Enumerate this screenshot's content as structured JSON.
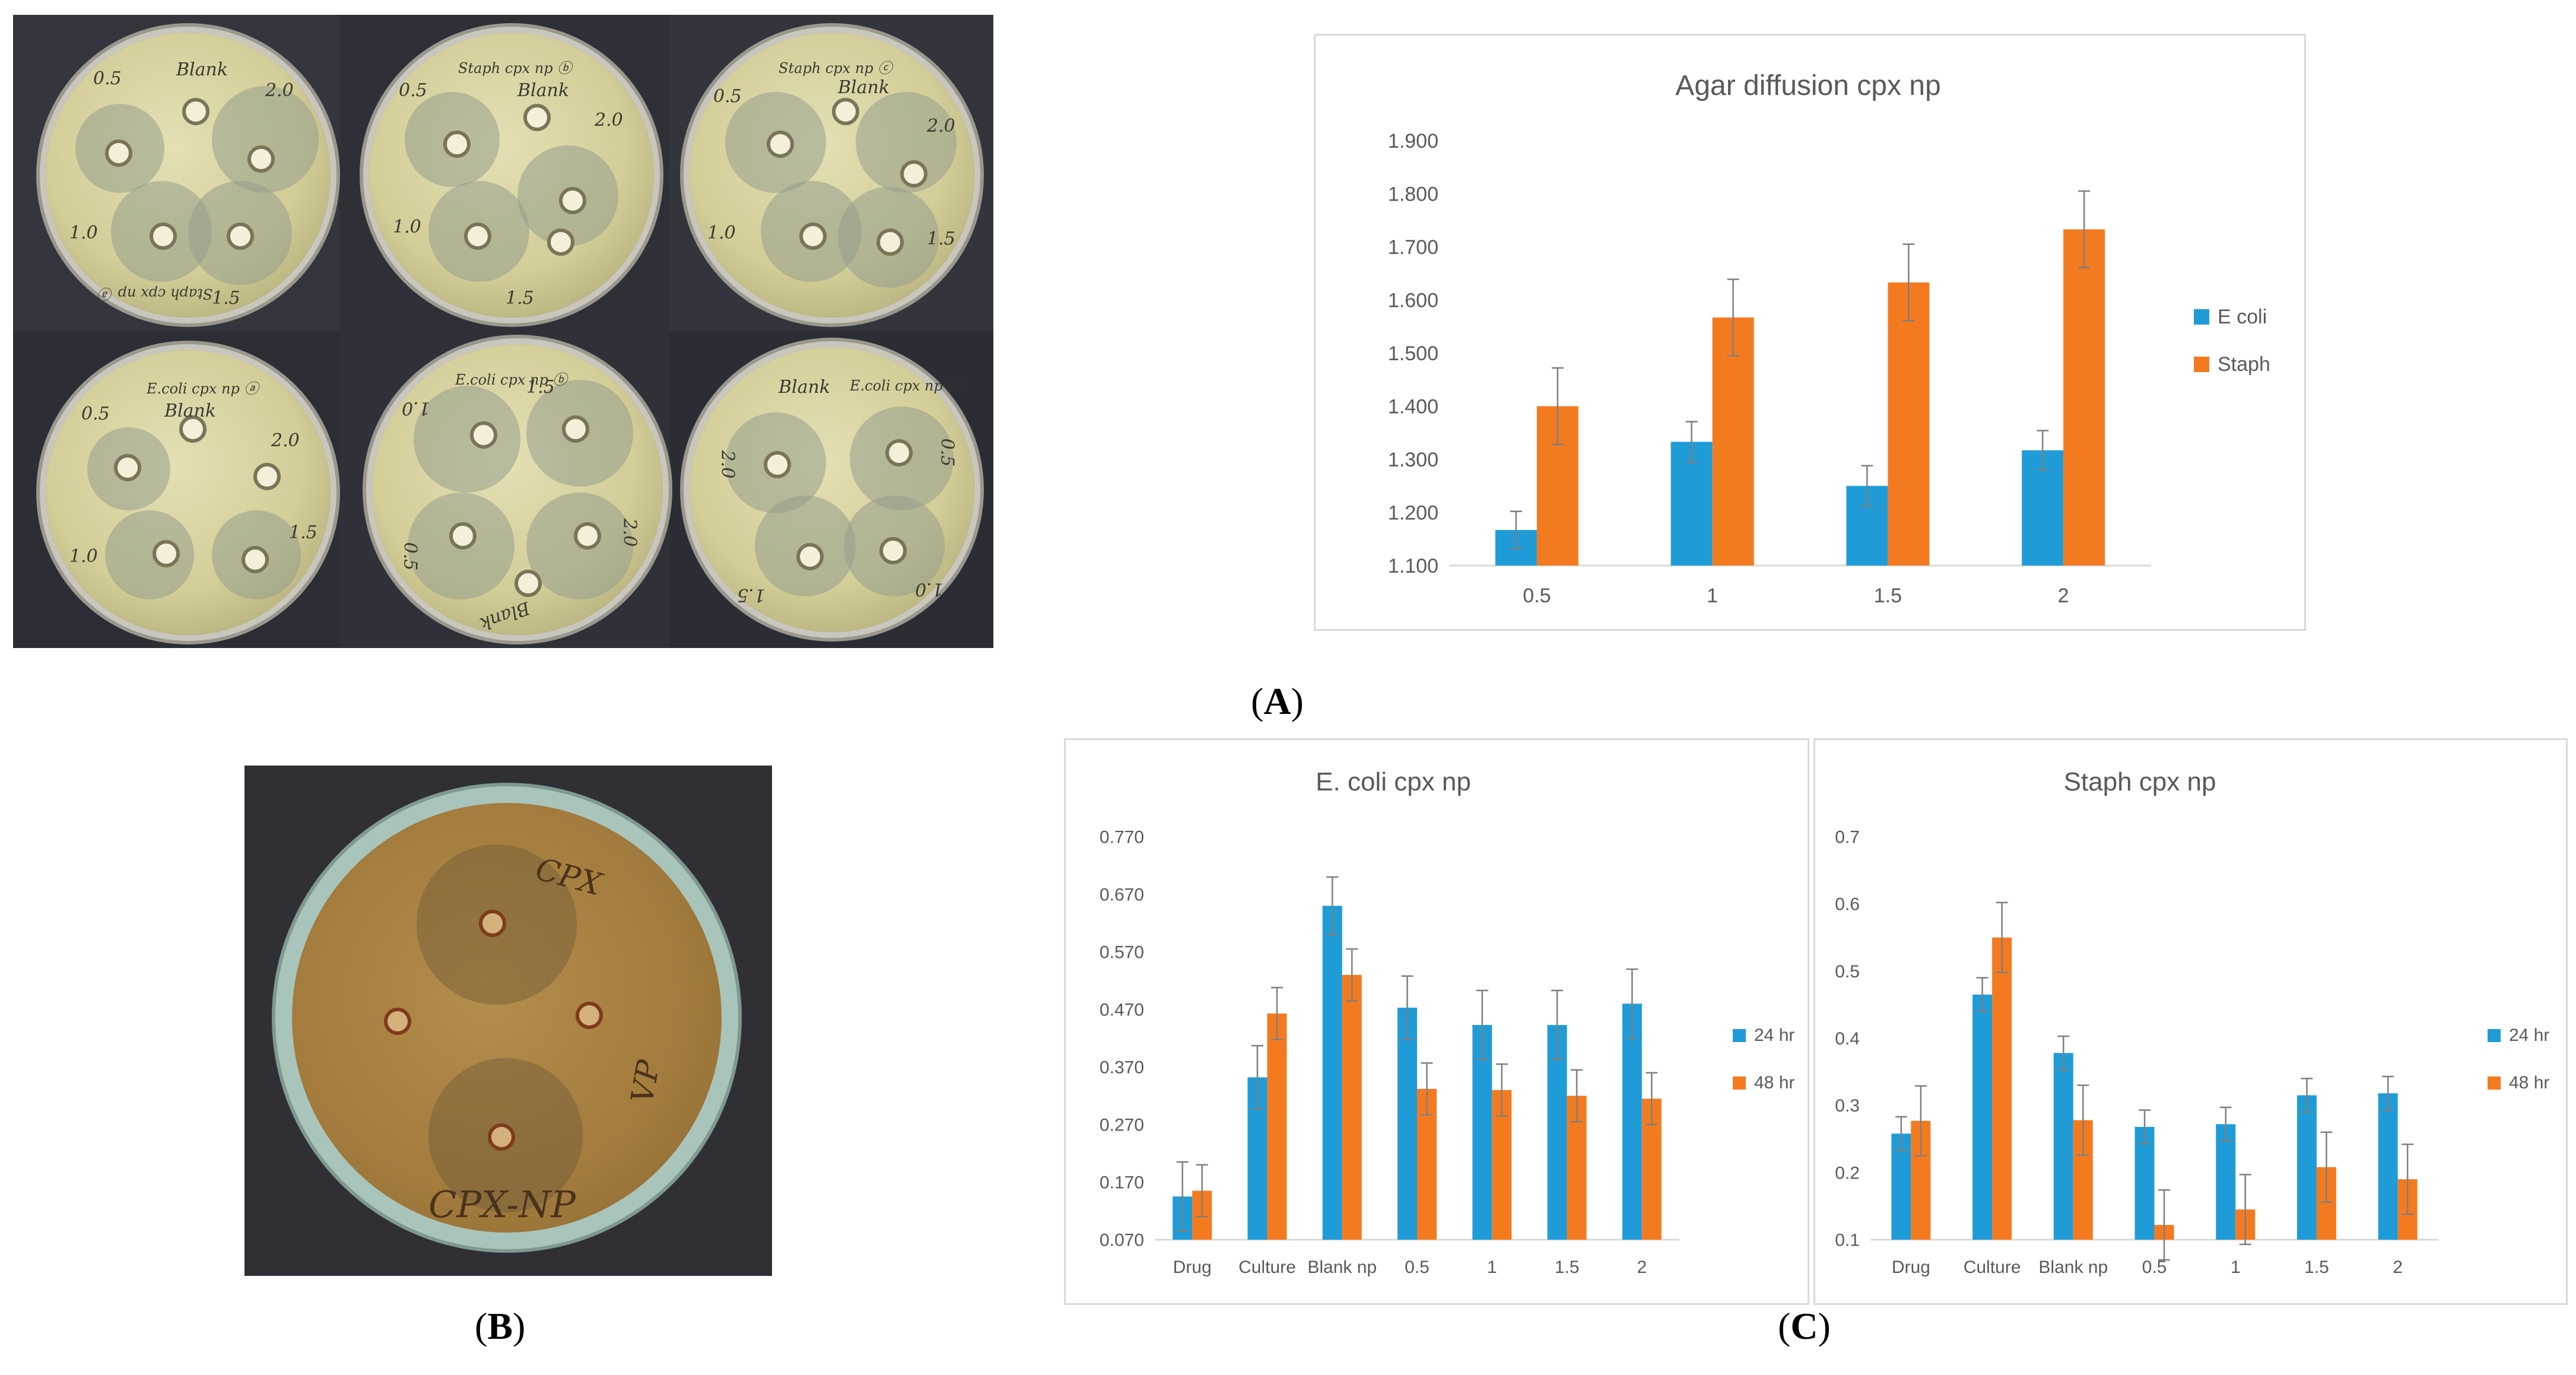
{
  "panel_labels": {
    "A": "A",
    "B": "B",
    "C": "C"
  },
  "photo_A": {
    "plates": [
      {
        "marks": [
          "0.5",
          "Blank",
          "2.0",
          "1.0",
          "1.5",
          "Staph cpx np ⓐ"
        ]
      },
      {
        "marks": [
          "0.5",
          "Staph cpx np ⓑ",
          "Blank",
          "2.0",
          "1.0",
          "1.5"
        ]
      },
      {
        "marks": [
          "0.5",
          "Staph cpx np ⓒ",
          "Blank",
          "2.0",
          "1.0",
          "1.5"
        ]
      },
      {
        "marks": [
          "0.5",
          "E.coli cpx np ⓐ",
          "Blank",
          "2.0",
          "1.0",
          "1.5"
        ]
      },
      {
        "marks": [
          "1.0",
          "E.coli cpx np ⓑ",
          "1.5",
          "2.0",
          "0.5",
          "Blank"
        ]
      },
      {
        "marks": [
          "Blank",
          "E.coli cpx np ⓒ",
          "2.0",
          "0.5",
          "1.5",
          "1.0"
        ]
      }
    ]
  },
  "photo_B": {
    "marks": [
      "CPX",
      "VP",
      "CPX-NP"
    ]
  },
  "colors": {
    "ecoli": "#1F9CD8",
    "staph": "#F47A20",
    "h24": "#1F9CD8",
    "h48": "#F47A20",
    "axis": "#d9d9d9",
    "text": "#595959"
  },
  "chart_data": [
    {
      "type": "bar",
      "title": "Agar diffusion  cpx np",
      "categories": [
        "0.5",
        "1",
        "1.5",
        "2"
      ],
      "series": [
        {
          "name": "E coli",
          "values": [
            1.167,
            1.333,
            1.25,
            1.317
          ],
          "errors": [
            0.035,
            0.038,
            0.038,
            0.037
          ]
        },
        {
          "name": "Staph",
          "values": [
            1.4,
            1.567,
            1.633,
            1.733
          ],
          "errors": [
            0.072,
            0.072,
            0.072,
            0.072
          ]
        }
      ],
      "yticks": [
        "1.100",
        "1.200",
        "1.300",
        "1.400",
        "1.500",
        "1.600",
        "1.700",
        "1.800",
        "1.900"
      ],
      "ylim": [
        1.1,
        1.9
      ],
      "legend": "right"
    },
    {
      "type": "bar",
      "title": "E. coli cpx np",
      "categories": [
        "Drug",
        "Culture",
        "Blank np",
        "0.5",
        "1",
        "1.5",
        "2"
      ],
      "series": [
        {
          "name": "24 hr",
          "values": [
            0.145,
            0.352,
            0.65,
            0.473,
            0.443,
            0.443,
            0.48
          ],
          "errors": [
            0.06,
            0.055,
            0.05,
            0.055,
            0.06,
            0.06,
            0.06
          ]
        },
        {
          "name": "48 hr",
          "values": [
            0.155,
            0.463,
            0.53,
            0.332,
            0.33,
            0.32,
            0.315
          ],
          "errors": [
            0.045,
            0.045,
            0.045,
            0.045,
            0.045,
            0.045,
            0.045
          ]
        }
      ],
      "yticks": [
        "0.070",
        "0.170",
        "0.270",
        "0.370",
        "0.470",
        "0.570",
        "0.670",
        "0.770"
      ],
      "ylim": [
        0.07,
        0.77
      ],
      "legend": "right"
    },
    {
      "type": "bar",
      "title": "Staph cpx np",
      "categories": [
        "Drug",
        "Culture",
        "Blank np",
        "0.5",
        "1",
        "1.5",
        "2"
      ],
      "series": [
        {
          "name": "24 hr",
          "values": [
            0.258,
            0.465,
            0.378,
            0.268,
            0.272,
            0.315,
            0.318
          ],
          "errors": [
            0.025,
            0.025,
            0.025,
            0.025,
            0.025,
            0.025,
            0.025
          ]
        },
        {
          "name": "48 hr",
          "values": [
            0.277,
            0.55,
            0.278,
            0.122,
            0.145,
            0.208,
            0.19
          ],
          "errors": [
            0.052,
            0.052,
            0.052,
            0.052,
            0.052,
            0.052,
            0.052
          ]
        }
      ],
      "yticks": [
        "0.1",
        "0.2",
        "0.3",
        "0.4",
        "0.5",
        "0.6",
        "0.7"
      ],
      "ylim": [
        0.1,
        0.7
      ],
      "legend": "right"
    }
  ]
}
